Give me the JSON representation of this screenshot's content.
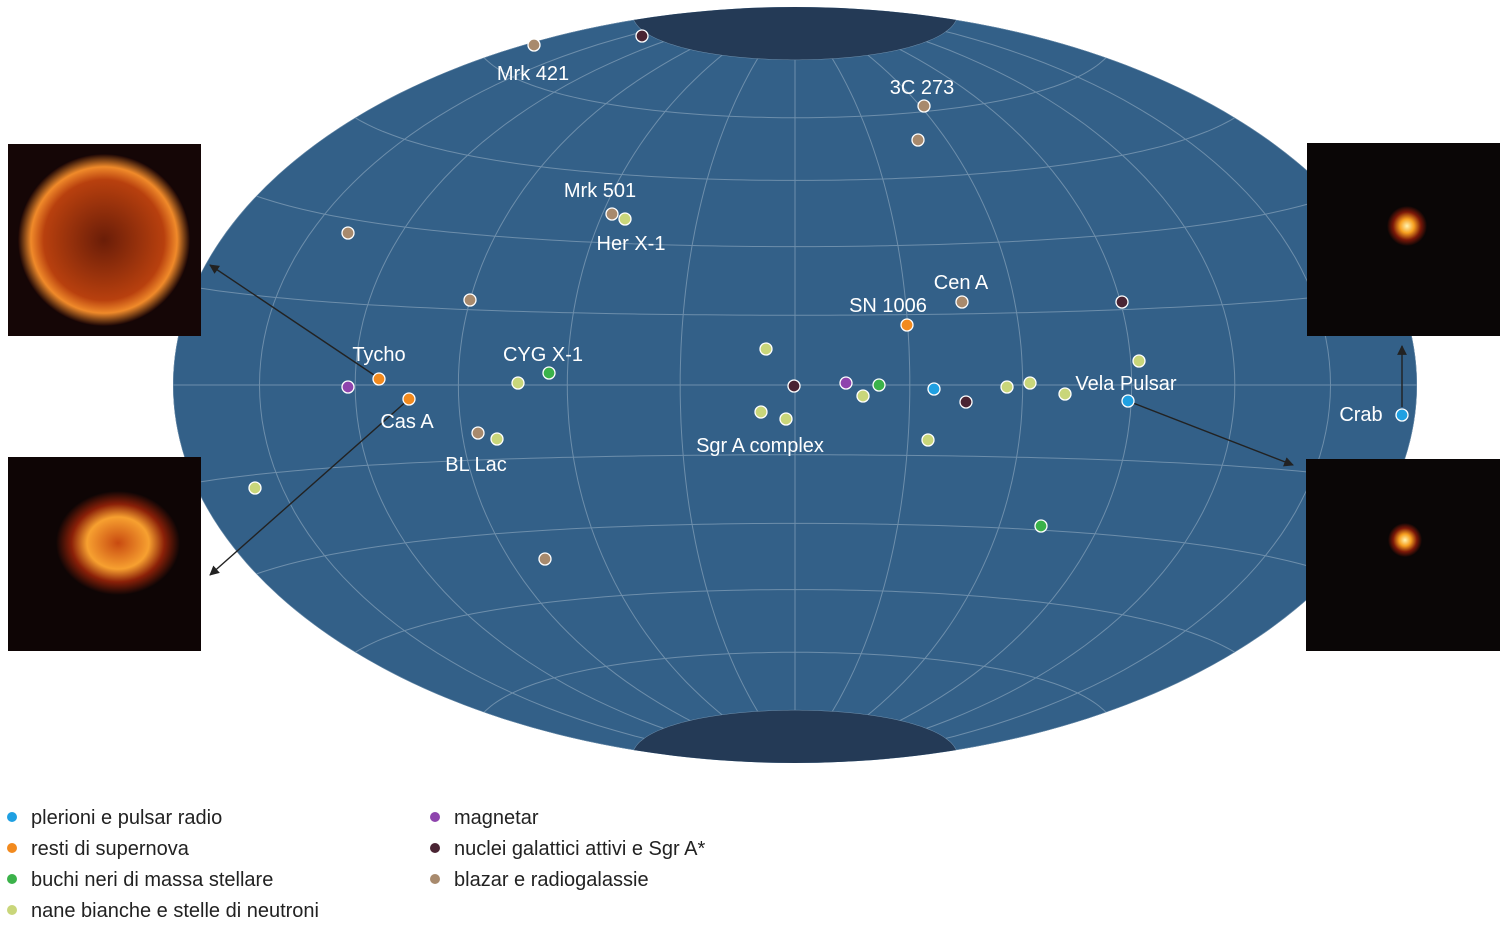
{
  "labels": [
    "Mrk 421",
    "3C 273",
    "Mrk 501",
    "Her X-1",
    "Cen A",
    "SN 1006",
    "Tycho",
    "CYG X-1",
    "Vela Pulsar",
    "Crab",
    "Cas A",
    "BL Lac",
    "Sgr A complex"
  ],
  "legend": [
    {
      "label": "plerioni e pulsar radio",
      "color": "#1fa0e2"
    },
    {
      "label": "resti di supernova",
      "color": "#f28a1e"
    },
    {
      "label": "buchi neri di massa stellare",
      "color": "#3bb24a"
    },
    {
      "label": "nane bianche e stelle di neutroni",
      "color": "#c9d67a"
    },
    {
      "label": "magnetar",
      "color": "#8e44ad"
    },
    {
      "label": "nuclei galattici attivi e Sgr A*",
      "color": "#4a2433"
    },
    {
      "label": "blazar e radiogalassie",
      "color": "#a88a6d"
    }
  ]
}
